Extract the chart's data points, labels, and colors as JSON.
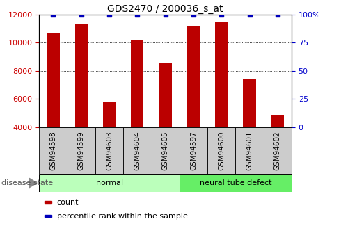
{
  "title": "GDS2470 / 200036_s_at",
  "samples": [
    "GSM94598",
    "GSM94599",
    "GSM94603",
    "GSM94604",
    "GSM94605",
    "GSM94597",
    "GSM94600",
    "GSM94601",
    "GSM94602"
  ],
  "counts": [
    10700,
    11300,
    5800,
    10200,
    8600,
    11200,
    11500,
    7400,
    4900
  ],
  "percentiles": [
    100,
    100,
    100,
    100,
    100,
    100,
    100,
    100,
    100
  ],
  "disease_groups": [
    {
      "label": "normal",
      "start": 0,
      "end": 5,
      "color": "#bbffbb"
    },
    {
      "label": "neural tube defect",
      "start": 5,
      "end": 9,
      "color": "#66ee66"
    }
  ],
  "ylim_left": [
    4000,
    12000
  ],
  "ylim_right": [
    0,
    100
  ],
  "yticks_left": [
    4000,
    6000,
    8000,
    10000,
    12000
  ],
  "yticks_right": [
    0,
    25,
    50,
    75,
    100
  ],
  "yticklabels_right": [
    "0",
    "25",
    "50",
    "75",
    "100%"
  ],
  "bar_color": "#bb0000",
  "percentile_color": "#0000bb",
  "bar_width": 0.45,
  "title_fontsize": 10,
  "tick_fontsize": 8,
  "axis_left_color": "#cc0000",
  "axis_right_color": "#0000cc",
  "xtick_box_color": "#cccccc",
  "legend_items": [
    {
      "label": "count",
      "color": "#bb0000"
    },
    {
      "label": "percentile rank within the sample",
      "color": "#0000bb"
    }
  ]
}
